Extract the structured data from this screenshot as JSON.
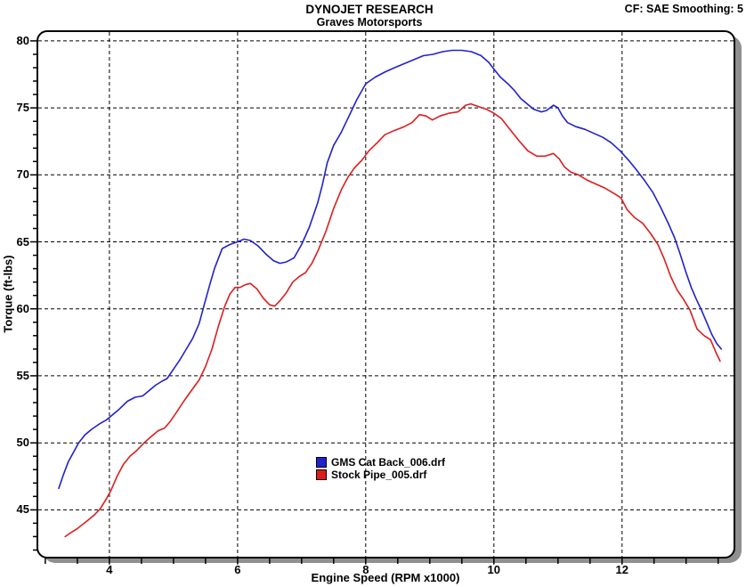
{
  "chart_data": {
    "type": "line",
    "title": "DYNOJET RESEARCH",
    "subtitle": "Graves Motorsports",
    "corner_info": "CF: SAE  Smoothing: 5",
    "xlabel": "Engine Speed (RPM x1000)",
    "ylabel": "Torque (ft-lbs)",
    "xlim": [
      2.89,
      13.74
    ],
    "ylim": [
      41.5,
      80.66
    ],
    "grid_style": "dashed",
    "legend_position": "inside-bottom-center",
    "x_gridlines": [
      4,
      6,
      8,
      10,
      12
    ],
    "x_labeled_ticks": [
      4,
      6,
      8,
      10,
      12
    ],
    "x_minor_tick_step": 0.5,
    "x_minor_tick_range": [
      3,
      13.5
    ],
    "y_gridlines": [
      45,
      50,
      55,
      60,
      65,
      70,
      75,
      80
    ],
    "y_labeled_ticks": [
      80,
      75,
      70,
      65,
      60,
      55,
      50,
      45
    ],
    "y_minor_tick_step": 1,
    "series": [
      {
        "name": "GMS Cat Back_006.drf",
        "color": "#2121cd",
        "points": [
          [
            3.21,
            46.6
          ],
          [
            3.28,
            47.6
          ],
          [
            3.36,
            48.6
          ],
          [
            3.44,
            49.3
          ],
          [
            3.52,
            50.0
          ],
          [
            3.62,
            50.6
          ],
          [
            3.72,
            51.0
          ],
          [
            3.84,
            51.4
          ],
          [
            3.95,
            51.7
          ],
          [
            4.05,
            52.1
          ],
          [
            4.15,
            52.5
          ],
          [
            4.28,
            53.1
          ],
          [
            4.4,
            53.4
          ],
          [
            4.52,
            53.5
          ],
          [
            4.62,
            53.9
          ],
          [
            4.72,
            54.3
          ],
          [
            4.82,
            54.6
          ],
          [
            4.9,
            54.8
          ],
          [
            5.0,
            55.5
          ],
          [
            5.1,
            56.2
          ],
          [
            5.2,
            57.0
          ],
          [
            5.3,
            57.8
          ],
          [
            5.4,
            58.9
          ],
          [
            5.48,
            60.3
          ],
          [
            5.56,
            61.7
          ],
          [
            5.64,
            63.0
          ],
          [
            5.76,
            64.5
          ],
          [
            5.88,
            64.8
          ],
          [
            6.0,
            65.0
          ],
          [
            6.1,
            65.2
          ],
          [
            6.2,
            65.1
          ],
          [
            6.32,
            64.7
          ],
          [
            6.44,
            64.1
          ],
          [
            6.56,
            63.6
          ],
          [
            6.66,
            63.4
          ],
          [
            6.76,
            63.5
          ],
          [
            6.88,
            63.8
          ],
          [
            7.0,
            64.8
          ],
          [
            7.12,
            66.1
          ],
          [
            7.25,
            67.9
          ],
          [
            7.32,
            69.2
          ],
          [
            7.4,
            70.9
          ],
          [
            7.5,
            72.2
          ],
          [
            7.62,
            73.2
          ],
          [
            7.74,
            74.4
          ],
          [
            7.86,
            75.6
          ],
          [
            8.0,
            76.8
          ],
          [
            8.15,
            77.3
          ],
          [
            8.31,
            77.7
          ],
          [
            8.45,
            78.0
          ],
          [
            8.6,
            78.3
          ],
          [
            8.75,
            78.6
          ],
          [
            8.9,
            78.9
          ],
          [
            9.05,
            79.0
          ],
          [
            9.2,
            79.2
          ],
          [
            9.35,
            79.3
          ],
          [
            9.5,
            79.3
          ],
          [
            9.65,
            79.2
          ],
          [
            9.8,
            78.9
          ],
          [
            9.92,
            78.4
          ],
          [
            10.0,
            77.9
          ],
          [
            10.1,
            77.3
          ],
          [
            10.22,
            76.8
          ],
          [
            10.32,
            76.3
          ],
          [
            10.42,
            75.7
          ],
          [
            10.52,
            75.3
          ],
          [
            10.62,
            74.9
          ],
          [
            10.74,
            74.7
          ],
          [
            10.82,
            74.8
          ],
          [
            10.93,
            75.2
          ],
          [
            11.0,
            75.0
          ],
          [
            11.07,
            74.4
          ],
          [
            11.15,
            73.9
          ],
          [
            11.28,
            73.6
          ],
          [
            11.42,
            73.4
          ],
          [
            11.56,
            73.1
          ],
          [
            11.7,
            72.8
          ],
          [
            11.83,
            72.4
          ],
          [
            11.97,
            71.8
          ],
          [
            12.1,
            71.1
          ],
          [
            12.22,
            70.4
          ],
          [
            12.35,
            69.6
          ],
          [
            12.48,
            68.7
          ],
          [
            12.6,
            67.6
          ],
          [
            12.72,
            66.4
          ],
          [
            12.82,
            65.3
          ],
          [
            12.9,
            64.2
          ],
          [
            13.0,
            62.7
          ],
          [
            13.08,
            61.6
          ],
          [
            13.16,
            60.7
          ],
          [
            13.24,
            59.9
          ],
          [
            13.32,
            59.0
          ],
          [
            13.4,
            58.1
          ],
          [
            13.48,
            57.4
          ],
          [
            13.55,
            57.0
          ]
        ]
      },
      {
        "name": "Stock Pipe_005.drf",
        "color": "#dd1d1d",
        "points": [
          [
            3.31,
            43.0
          ],
          [
            3.4,
            43.3
          ],
          [
            3.5,
            43.6
          ],
          [
            3.58,
            43.9
          ],
          [
            3.66,
            44.2
          ],
          [
            3.76,
            44.6
          ],
          [
            3.86,
            45.1
          ],
          [
            3.95,
            45.8
          ],
          [
            4.02,
            46.4
          ],
          [
            4.12,
            47.5
          ],
          [
            4.22,
            48.4
          ],
          [
            4.32,
            49.0
          ],
          [
            4.42,
            49.4
          ],
          [
            4.54,
            50.0
          ],
          [
            4.66,
            50.5
          ],
          [
            4.76,
            50.9
          ],
          [
            4.86,
            51.1
          ],
          [
            4.95,
            51.6
          ],
          [
            5.05,
            52.3
          ],
          [
            5.16,
            53.1
          ],
          [
            5.28,
            53.9
          ],
          [
            5.4,
            54.7
          ],
          [
            5.5,
            55.7
          ],
          [
            5.6,
            57.0
          ],
          [
            5.7,
            58.7
          ],
          [
            5.8,
            60.2
          ],
          [
            5.88,
            61.1
          ],
          [
            5.96,
            61.6
          ],
          [
            6.04,
            61.6
          ],
          [
            6.12,
            61.8
          ],
          [
            6.2,
            61.9
          ],
          [
            6.3,
            61.5
          ],
          [
            6.4,
            60.8
          ],
          [
            6.5,
            60.3
          ],
          [
            6.58,
            60.2
          ],
          [
            6.66,
            60.6
          ],
          [
            6.76,
            61.2
          ],
          [
            6.86,
            62.0
          ],
          [
            6.96,
            62.4
          ],
          [
            7.06,
            62.7
          ],
          [
            7.16,
            63.4
          ],
          [
            7.26,
            64.4
          ],
          [
            7.38,
            65.8
          ],
          [
            7.5,
            67.5
          ],
          [
            7.62,
            68.9
          ],
          [
            7.72,
            69.8
          ],
          [
            7.82,
            70.5
          ],
          [
            7.94,
            71.1
          ],
          [
            8.05,
            71.8
          ],
          [
            8.18,
            72.4
          ],
          [
            8.3,
            73.0
          ],
          [
            8.44,
            73.3
          ],
          [
            8.6,
            73.6
          ],
          [
            8.72,
            73.9
          ],
          [
            8.84,
            74.5
          ],
          [
            8.94,
            74.4
          ],
          [
            9.04,
            74.1
          ],
          [
            9.16,
            74.4
          ],
          [
            9.3,
            74.6
          ],
          [
            9.44,
            74.7
          ],
          [
            9.56,
            75.2
          ],
          [
            9.64,
            75.3
          ],
          [
            9.76,
            75.1
          ],
          [
            9.88,
            74.9
          ],
          [
            10.0,
            74.6
          ],
          [
            10.12,
            74.2
          ],
          [
            10.25,
            73.4
          ],
          [
            10.4,
            72.5
          ],
          [
            10.53,
            71.8
          ],
          [
            10.67,
            71.4
          ],
          [
            10.8,
            71.4
          ],
          [
            10.93,
            71.6
          ],
          [
            11.02,
            71.2
          ],
          [
            11.1,
            70.6
          ],
          [
            11.2,
            70.2
          ],
          [
            11.32,
            70.0
          ],
          [
            11.46,
            69.6
          ],
          [
            11.6,
            69.3
          ],
          [
            11.74,
            69.0
          ],
          [
            11.88,
            68.6
          ],
          [
            11.98,
            68.3
          ],
          [
            12.08,
            67.4
          ],
          [
            12.2,
            66.8
          ],
          [
            12.32,
            66.4
          ],
          [
            12.45,
            65.6
          ],
          [
            12.56,
            64.8
          ],
          [
            12.66,
            63.7
          ],
          [
            12.76,
            62.4
          ],
          [
            12.86,
            61.4
          ],
          [
            12.96,
            60.7
          ],
          [
            13.06,
            59.9
          ],
          [
            13.17,
            58.5
          ],
          [
            13.28,
            58.0
          ],
          [
            13.38,
            57.7
          ],
          [
            13.47,
            56.7
          ],
          [
            13.53,
            56.1
          ]
        ]
      }
    ]
  }
}
